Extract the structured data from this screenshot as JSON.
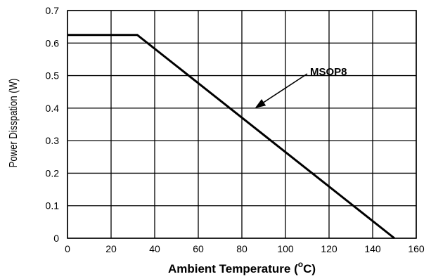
{
  "chart_data": {
    "type": "line",
    "title": "",
    "xlabel": "Ambient Temperature (",
    "xlabel_unit_sup": "o",
    "xlabel_unit_after": "C)",
    "ylabel": "Power Disspation (W)",
    "xlim": [
      0,
      160
    ],
    "ylim": [
      0,
      0.7
    ],
    "xticks": [
      0,
      20,
      40,
      60,
      80,
      100,
      120,
      140,
      160
    ],
    "yticks": [
      0,
      0.1,
      0.2,
      0.3,
      0.4,
      0.5,
      0.6,
      0.7
    ],
    "xtick_labels": [
      "0",
      "20",
      "40",
      "60",
      "80",
      "100",
      "120",
      "140",
      "160"
    ],
    "ytick_labels": [
      "0",
      "0.1",
      "0.2",
      "0.3",
      "0.4",
      "0.5",
      "0.6",
      "0.7"
    ],
    "grid": true,
    "series": [
      {
        "name": "MSOP8",
        "x": [
          0,
          32,
          150
        ],
        "y": [
          0.625,
          0.625,
          0
        ]
      }
    ],
    "annotations": [
      {
        "text": "MSOP8",
        "arrow_to": {
          "x": 86,
          "y": 0.4
        }
      }
    ]
  }
}
